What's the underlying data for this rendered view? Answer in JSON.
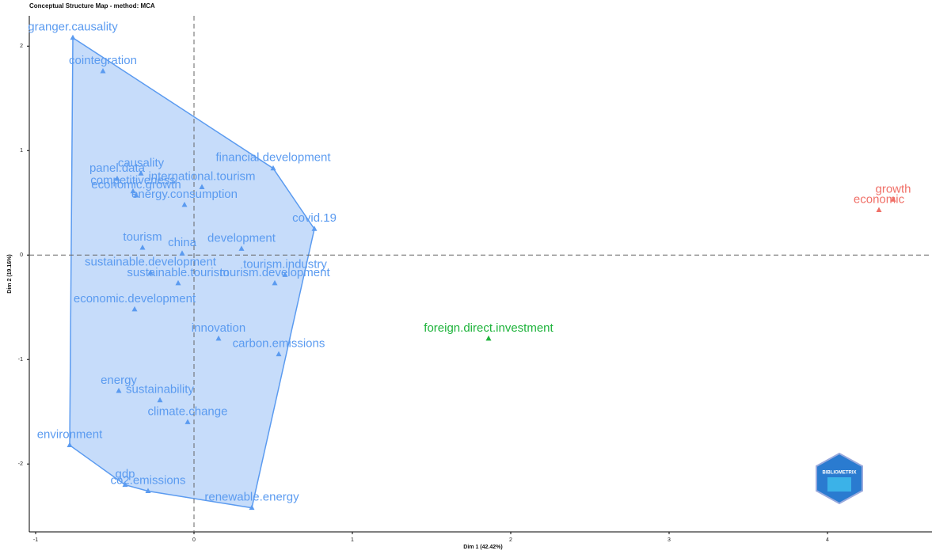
{
  "chart_data": {
    "type": "scatter",
    "title": "Conceptual Structure Map - method: MCA",
    "x_label": "Dim 1 (42.42%)",
    "y_label": "Dim 2 (19.16%)",
    "xlim": [
      -1.04,
      4.66
    ],
    "xticks": [
      -1,
      0,
      1,
      2,
      3,
      4
    ],
    "ylim": [
      -2.65,
      2.29
    ],
    "yticks": [
      -2,
      -1,
      0,
      1,
      2
    ],
    "hull": true,
    "logo": "BIBLIOMETRIX",
    "series": [
      {
        "color": "#5b9bf0",
        "labels": [
          "granger.causality",
          "cointegration",
          "panel.data",
          "causality",
          "competitiveness",
          "economic.growth",
          "international.tourism",
          "financial.development",
          "covid.19",
          "energy.consumption",
          "development",
          "china",
          "tourism",
          "sustainable.development",
          "sustainable.tourism",
          "tourism.industry",
          "tourism.development",
          "economic.development",
          "innovation",
          "carbon.emissions",
          "energy",
          "sustainability",
          "climate.change",
          "environment",
          "gdp",
          "co2.emissions",
          "renewable.energy"
        ],
        "x": [
          -0.765,
          -0.575,
          -0.485,
          -0.335,
          -0.385,
          -0.365,
          0.05,
          0.5,
          0.76,
          -0.06,
          0.3,
          -0.075,
          -0.325,
          -0.275,
          -0.1,
          0.575,
          0.51,
          -0.375,
          0.155,
          0.535,
          -0.475,
          -0.215,
          -0.04,
          -0.785,
          -0.435,
          -0.29,
          0.365
        ],
        "y": [
          2.08,
          1.76,
          0.73,
          0.78,
          0.61,
          0.57,
          0.65,
          0.83,
          0.25,
          0.48,
          0.06,
          0.015,
          0.07,
          -0.17,
          -0.27,
          -0.19,
          -0.27,
          -0.52,
          -0.8,
          -0.95,
          -1.3,
          -1.39,
          -1.6,
          -1.82,
          -2.2,
          -2.26,
          -2.42
        ]
      },
      {
        "color": "#1db33a",
        "labels": [
          "foreign.direct.investment"
        ],
        "x": [
          1.86
        ],
        "y": [
          -0.8
        ]
      },
      {
        "color": "#f07068",
        "labels": [
          "growth",
          "economic"
        ],
        "x": [
          4.415,
          4.325
        ],
        "y": [
          0.53,
          0.43
        ]
      }
    ]
  }
}
